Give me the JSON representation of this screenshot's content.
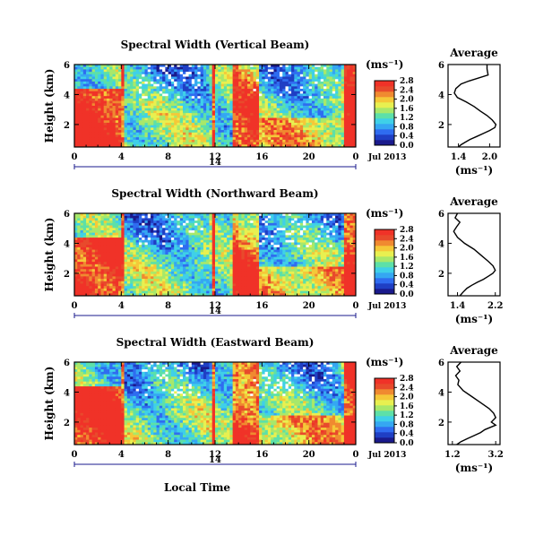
{
  "figure": {
    "xlabel": "Local Time",
    "date_label": "Jul 2013",
    "date_marker": "14",
    "unit_label": "(ms⁻¹)",
    "avg_title": "Average",
    "avg_xunit": "(ms⁻¹)"
  },
  "colormap": [
    "#1a1a8c",
    "#1f3fc4",
    "#2f6cf0",
    "#35a7f2",
    "#3fd0e8",
    "#5de0a8",
    "#a8e86a",
    "#e8f050",
    "#f5c838",
    "#f08a30",
    "#e84a2c",
    "#f03228"
  ],
  "chart_data": [
    {
      "type": "heatmap",
      "title": "Spectral Width (Vertical Beam)",
      "ylabel": "Height (km)",
      "xlabel": "Local Time",
      "x_ticks": [
        "0",
        "4",
        "8",
        "12",
        "16",
        "20",
        "0"
      ],
      "y_ticks": [
        "2",
        "4",
        "6"
      ],
      "xlim": [
        0,
        24
      ],
      "ylim": [
        0.5,
        6
      ],
      "colorbar": {
        "ticks": [
          "0.0",
          "0.4",
          "0.8",
          "1.2",
          "1.6",
          "2.0",
          "2.4",
          "2.8"
        ],
        "range": [
          0,
          2.8
        ]
      },
      "grid": false
    },
    {
      "type": "line",
      "title": "Average",
      "xlabel": "(ms⁻¹)",
      "x_ticks": [
        "1.4",
        "2.0"
      ],
      "y_ticks": [
        "2",
        "4",
        "6"
      ],
      "xlim": [
        1.2,
        2.2
      ],
      "ylim": [
        0.5,
        6
      ],
      "x": [
        1.95,
        1.95,
        1.97,
        1.6,
        1.45,
        1.35,
        1.32,
        1.38,
        1.55,
        1.7,
        1.82,
        1.95,
        2.05,
        2.12,
        2.1,
        2.0,
        1.88,
        1.75,
        1.62,
        1.52,
        1.45,
        1.4
      ],
      "y": [
        6.0,
        5.7,
        5.3,
        4.9,
        4.7,
        4.4,
        4.1,
        3.8,
        3.5,
        3.2,
        2.9,
        2.6,
        2.3,
        2.0,
        1.8,
        1.6,
        1.4,
        1.2,
        1.0,
        0.8,
        0.65,
        0.5
      ]
    },
    {
      "type": "heatmap",
      "title": "Spectral Width (Northward Beam)",
      "ylabel": "Height (km)",
      "xlabel": "Local Time",
      "x_ticks": [
        "0",
        "4",
        "8",
        "12",
        "16",
        "20",
        "0"
      ],
      "y_ticks": [
        "2",
        "4",
        "6"
      ],
      "xlim": [
        0,
        24
      ],
      "ylim": [
        0.5,
        6
      ],
      "colorbar": {
        "ticks": [
          "0.0",
          "0.4",
          "0.8",
          "1.2",
          "1.6",
          "2.0",
          "2.4",
          "2.8"
        ],
        "range": [
          0,
          2.8
        ]
      },
      "grid": false
    },
    {
      "type": "line",
      "title": "Average",
      "xlabel": "(ms⁻¹)",
      "x_ticks": [
        "1.4",
        "2.2"
      ],
      "y_ticks": [
        "2",
        "4",
        "6"
      ],
      "xlim": [
        1.2,
        2.3
      ],
      "ylim": [
        0.5,
        6
      ],
      "x": [
        1.4,
        1.35,
        1.45,
        1.38,
        1.32,
        1.4,
        1.55,
        1.75,
        1.9,
        2.05,
        2.15,
        2.2,
        2.15,
        2.05,
        1.95,
        1.82,
        1.7,
        1.6,
        1.52,
        1.45
      ],
      "y": [
        6.0,
        5.7,
        5.4,
        5.1,
        4.8,
        4.4,
        4.0,
        3.6,
        3.2,
        2.8,
        2.5,
        2.2,
        2.0,
        1.8,
        1.6,
        1.4,
        1.2,
        1.0,
        0.75,
        0.5
      ]
    },
    {
      "type": "heatmap",
      "title": "Spectral Width (Eastward Beam)",
      "ylabel": "Height (km)",
      "xlabel": "Local Time",
      "x_ticks": [
        "0",
        "4",
        "8",
        "12",
        "16",
        "20",
        "0"
      ],
      "y_ticks": [
        "2",
        "4",
        "6"
      ],
      "xlim": [
        0,
        24
      ],
      "ylim": [
        0.5,
        6
      ],
      "colorbar": {
        "ticks": [
          "0.0",
          "0.4",
          "0.8",
          "1.2",
          "1.6",
          "2.0",
          "2.4",
          "2.8"
        ],
        "range": [
          0,
          2.8
        ]
      },
      "grid": false
    },
    {
      "type": "line",
      "title": "Average",
      "xlabel": "(ms⁻¹)",
      "x_ticks": [
        "1.2",
        "3.2"
      ],
      "y_ticks": [
        "2",
        "4",
        "6"
      ],
      "xlim": [
        1.0,
        3.4
      ],
      "ylim": [
        0.5,
        6
      ],
      "x": [
        1.6,
        1.4,
        1.55,
        1.35,
        1.5,
        1.45,
        1.7,
        2.1,
        2.5,
        2.9,
        3.1,
        3.2,
        3.0,
        3.2,
        2.7,
        2.5,
        2.2,
        1.9,
        1.6,
        1.4
      ],
      "y": [
        6.0,
        5.7,
        5.4,
        5.1,
        4.8,
        4.5,
        4.1,
        3.7,
        3.3,
        2.9,
        2.6,
        2.3,
        2.0,
        1.8,
        1.5,
        1.3,
        1.1,
        0.9,
        0.7,
        0.5
      ]
    }
  ]
}
